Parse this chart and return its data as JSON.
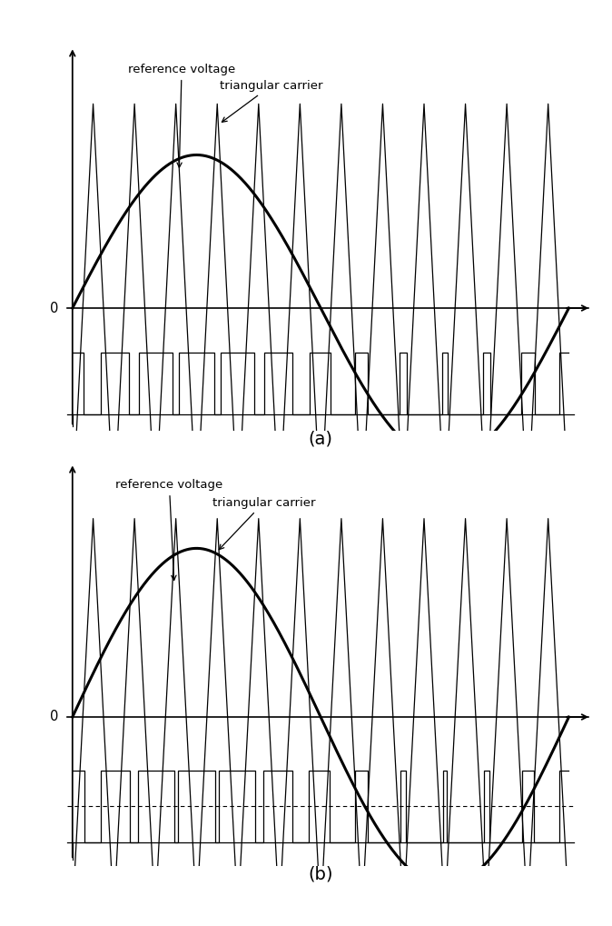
{
  "title_a": "(a)",
  "title_b": "(b)",
  "label_ref": "reference voltage",
  "label_tri": "triangular carrier",
  "n_carrier_cycles": 12,
  "sine_amplitude_a": 0.75,
  "sine_amplitude_b": 0.85,
  "carrier_amplitude": 1.0,
  "fig_width": 6.74,
  "fig_height": 10.19,
  "bg_color": "#ffffff",
  "annotation_fontsize": 9.5,
  "label_fontsize": 14
}
